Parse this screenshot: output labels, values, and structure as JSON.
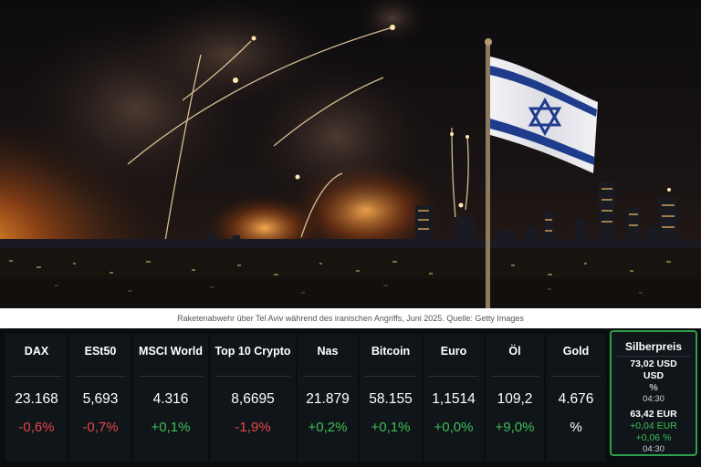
{
  "hero": {
    "image_alt": "Raketenabwehr über Tel Aviv bei Nacht, Rauch und Feuer, israelische Flagge"
  },
  "caption": "Raketenabwehr über Tel Aviv während des iranischen Angriffs, Juni 2025. Quelle: Getty Images",
  "ticker": [
    {
      "name": "DAX",
      "value": "23.168",
      "change": "-0,6%",
      "trend": "neg"
    },
    {
      "name": "ESt50",
      "value": "5,693",
      "change": "-0,7%",
      "trend": "neg"
    },
    {
      "name": "MSCI World",
      "value": "4.316",
      "change": "+0,1%",
      "trend": "pos"
    },
    {
      "name": "Top 10 Crypto",
      "value": "8,6695",
      "change": "-1,9%",
      "trend": "neg"
    },
    {
      "name": "Nas",
      "value": "21.879",
      "change": "+0,2%",
      "trend": "pos"
    },
    {
      "name": "Bitcoin",
      "value": "58.155",
      "change": "+0,1%",
      "trend": "pos"
    },
    {
      "name": "Euro",
      "value": "1,1514",
      "change": "+0,0%",
      "trend": "pos"
    },
    {
      "name": "Öl",
      "value": "109,2",
      "change": "+9,0%",
      "trend": "pos"
    },
    {
      "name": "Gold",
      "value": "4.676",
      "change": "%",
      "trend": "neu"
    }
  ],
  "silver": {
    "name": "Silberpreis",
    "usd_value": "73,02 USD",
    "usd_unit": "USD",
    "usd_pct": "%",
    "usd_time": "04:30",
    "eur_value": "63,42 EUR",
    "eur_change": "+0,04 EUR",
    "eur_pct": "+0,06 %",
    "eur_time": "04:30"
  },
  "colors": {
    "negative": "#e44848",
    "positive": "#3fbf55",
    "highlight_border": "#2e9e4a"
  }
}
